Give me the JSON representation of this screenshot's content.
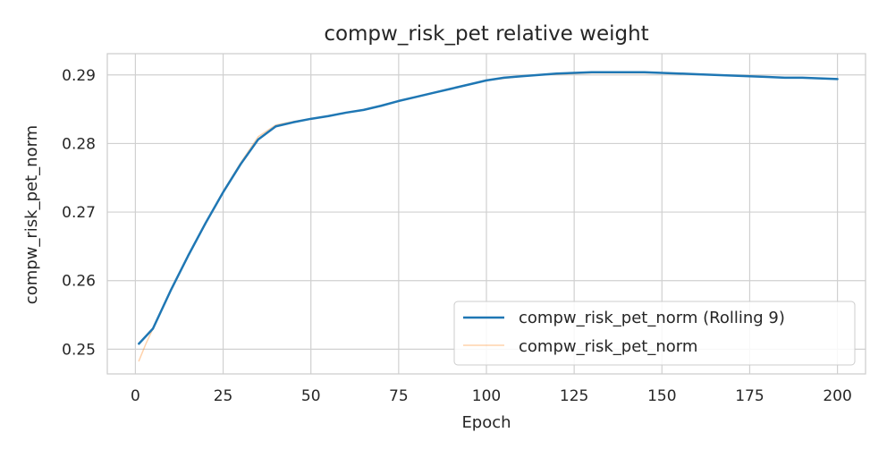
{
  "chart_data": {
    "type": "line",
    "title": "compw_risk_pet relative weight",
    "xlabel": "Epoch",
    "ylabel": "compw_risk_pet_norm",
    "xlim": [
      -8,
      208
    ],
    "ylim": [
      0.2464,
      0.2931
    ],
    "xticks": [
      0,
      25,
      50,
      75,
      100,
      125,
      150,
      175,
      200
    ],
    "yticks": [
      0.25,
      0.26,
      0.27,
      0.28,
      0.29
    ],
    "grid": true,
    "legend_position": "lower-right",
    "colors": {
      "rolling": "#1f77b4",
      "raw": "#ff7f0e"
    },
    "series": [
      {
        "name": "compw_risk_pet_norm (Rolling 9)",
        "x": [
          1,
          5,
          10,
          15,
          20,
          25,
          30,
          35,
          40,
          45,
          50,
          55,
          60,
          65,
          70,
          75,
          80,
          85,
          90,
          95,
          100,
          105,
          110,
          115,
          120,
          125,
          130,
          135,
          140,
          145,
          150,
          155,
          160,
          165,
          170,
          175,
          180,
          185,
          190,
          195,
          200
        ],
        "values": [
          0.2508,
          0.253,
          0.2585,
          0.2636,
          0.2684,
          0.2729,
          0.277,
          0.2806,
          0.2825,
          0.2831,
          0.2836,
          0.284,
          0.2845,
          0.2849,
          0.2855,
          0.2862,
          0.2868,
          0.2874,
          0.288,
          0.2886,
          0.2892,
          0.2896,
          0.2898,
          0.29,
          0.2902,
          0.2903,
          0.2904,
          0.2904,
          0.2904,
          0.2904,
          0.2903,
          0.2902,
          0.2901,
          0.29,
          0.2899,
          0.2898,
          0.2897,
          0.2896,
          0.2896,
          0.2895,
          0.2894
        ]
      },
      {
        "name": "compw_risk_pet_norm",
        "x": [
          1,
          3,
          5,
          10,
          15,
          20,
          25,
          30,
          35,
          40,
          45,
          50,
          55,
          60,
          65,
          70,
          75,
          80,
          85,
          90,
          95,
          100,
          105,
          110,
          115,
          120,
          125,
          130,
          135,
          140,
          145,
          150,
          155,
          160,
          165,
          170,
          175,
          180,
          185,
          190,
          195,
          200
        ],
        "values": [
          0.2483,
          0.2508,
          0.253,
          0.2585,
          0.2636,
          0.2684,
          0.273,
          0.2772,
          0.281,
          0.2827,
          0.2832,
          0.2836,
          0.284,
          0.2845,
          0.2849,
          0.2855,
          0.2862,
          0.2868,
          0.2874,
          0.288,
          0.2886,
          0.2892,
          0.2895,
          0.2898,
          0.29,
          0.2901,
          0.2902,
          0.2903,
          0.2903,
          0.2903,
          0.2903,
          0.2903,
          0.2902,
          0.2901,
          0.29,
          0.2899,
          0.2898,
          0.2897,
          0.2896,
          0.2896,
          0.2895,
          0.2894
        ]
      }
    ]
  }
}
